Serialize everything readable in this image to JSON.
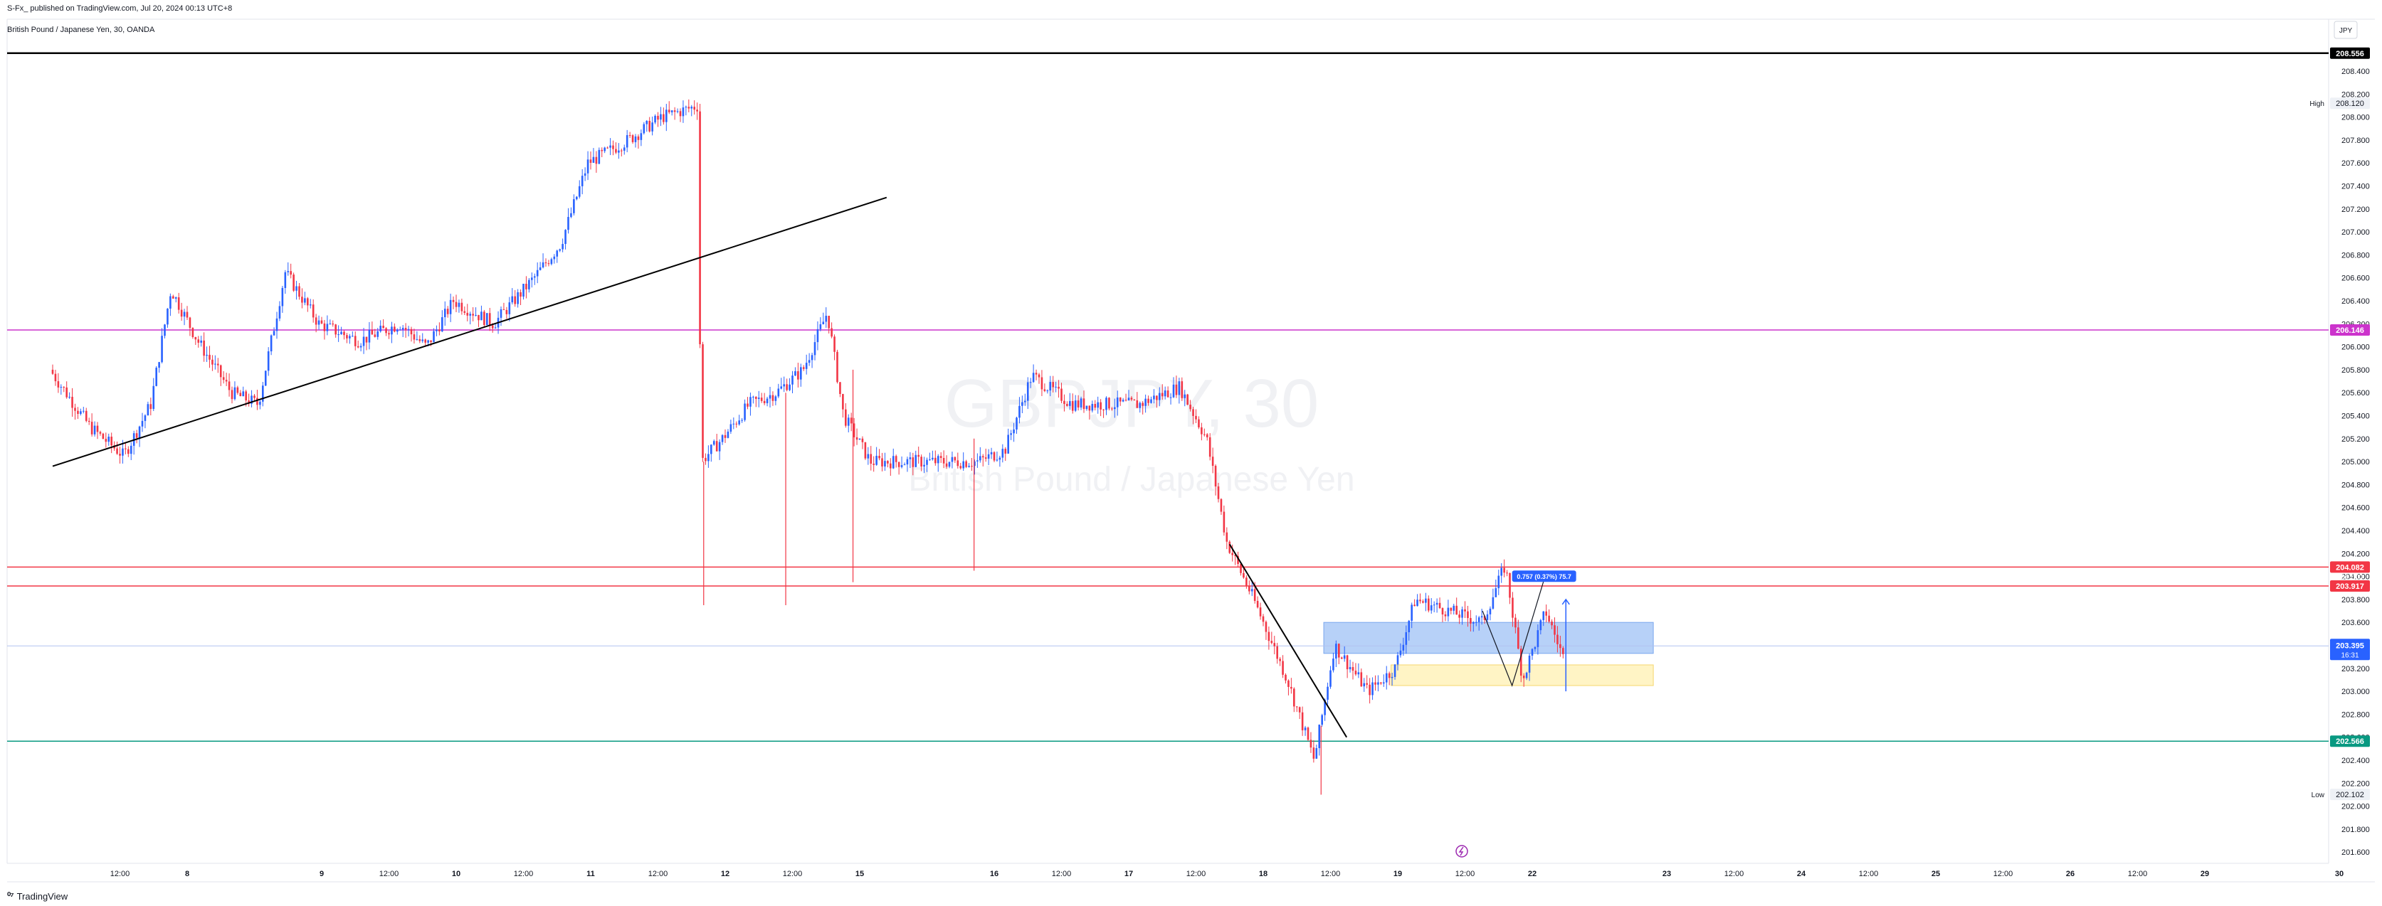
{
  "header": {
    "published_line": "S-Fx_ published on TradingView.com, Jul 20, 2024 00:13 UTC+8",
    "symbol_line": "British Pound / Japanese Yen, 30, OANDA"
  },
  "currency_box": "JPY",
  "watermark": {
    "symbol": "GBPJPY, 30",
    "name": "British Pound / Japanese Yen"
  },
  "footer": {
    "brand": "TradingView"
  },
  "colors": {
    "up": "#2962ff",
    "down": "#f23645",
    "level_black": "#000000",
    "level_magenta": "#cc33cc",
    "level_red": "#f23645",
    "level_teal": "#089981",
    "current_price": "#2962ff",
    "zone_blue": "#9fc1f5",
    "zone_yellow": "#fff3bf"
  },
  "chart_data": {
    "type": "candlestick",
    "y_axis": {
      "range": [
        201.5,
        208.6
      ],
      "ticks": [
        "208.400",
        "208.200",
        "208.000",
        "207.800",
        "207.600",
        "207.400",
        "207.200",
        "207.000",
        "206.800",
        "206.600",
        "206.400",
        "206.200",
        "206.000",
        "205.800",
        "205.600",
        "205.400",
        "205.200",
        "205.000",
        "204.800",
        "204.600",
        "204.400",
        "204.200",
        "204.000",
        "203.800",
        "203.600",
        "203.400",
        "203.200",
        "203.000",
        "202.800",
        "202.600",
        "202.400",
        "202.200",
        "202.000",
        "201.800",
        "201.600"
      ]
    },
    "x_axis": {
      "ticks": [
        {
          "label": "12:00",
          "session": 0.5
        },
        {
          "label": "8",
          "session": 1
        },
        {
          "label": "9",
          "session": 2
        },
        {
          "label": "12:00",
          "session": 2.5
        },
        {
          "label": "10",
          "session": 3
        },
        {
          "label": "12:00",
          "session": 3.5
        },
        {
          "label": "11",
          "session": 4
        },
        {
          "label": "12:00",
          "session": 4.5
        },
        {
          "label": "12",
          "session": 5
        },
        {
          "label": "12:00",
          "session": 5.5
        },
        {
          "label": "15",
          "session": 6
        },
        {
          "label": "16",
          "session": 7
        },
        {
          "label": "12:00",
          "session": 7.5
        },
        {
          "label": "17",
          "session": 8
        },
        {
          "label": "12:00",
          "session": 8.5
        },
        {
          "label": "18",
          "session": 9
        },
        {
          "label": "12:00",
          "session": 9.5
        },
        {
          "label": "19",
          "session": 10
        },
        {
          "label": "12:00",
          "session": 10.5
        },
        {
          "label": "22",
          "session": 11
        },
        {
          "label": "23",
          "session": 12
        },
        {
          "label": "12:00",
          "session": 12.5
        },
        {
          "label": "24",
          "session": 13
        },
        {
          "label": "12:00",
          "session": 13.5
        },
        {
          "label": "25",
          "session": 14
        },
        {
          "label": "12:00",
          "session": 14.5
        },
        {
          "label": "26",
          "session": 15
        },
        {
          "label": "12:00",
          "session": 15.5
        },
        {
          "label": "29",
          "session": 16
        },
        {
          "label": "30",
          "session": 17
        }
      ]
    },
    "price_path_keypoints": [
      {
        "session": 0.0,
        "price": 205.8
      },
      {
        "session": 0.3,
        "price": 205.3
      },
      {
        "session": 0.55,
        "price": 205.05
      },
      {
        "session": 0.75,
        "price": 205.5
      },
      {
        "session": 0.9,
        "price": 206.5
      },
      {
        "session": 1.1,
        "price": 206.05
      },
      {
        "session": 1.35,
        "price": 205.6
      },
      {
        "session": 1.55,
        "price": 205.5
      },
      {
        "session": 1.75,
        "price": 206.65
      },
      {
        "session": 2.0,
        "price": 206.2
      },
      {
        "session": 2.3,
        "price": 206.05
      },
      {
        "session": 2.6,
        "price": 206.2
      },
      {
        "session": 2.8,
        "price": 206.0
      },
      {
        "session": 3.0,
        "price": 206.4
      },
      {
        "session": 3.3,
        "price": 206.2
      },
      {
        "session": 3.6,
        "price": 206.6
      },
      {
        "session": 3.8,
        "price": 206.9
      },
      {
        "session": 4.0,
        "price": 207.6
      },
      {
        "session": 4.3,
        "price": 207.8
      },
      {
        "session": 4.55,
        "price": 208.0
      },
      {
        "session": 4.82,
        "price": 208.1
      },
      {
        "session": 4.84,
        "price": 205.0
      },
      {
        "session": 5.0,
        "price": 205.2
      },
      {
        "session": 5.2,
        "price": 205.5
      },
      {
        "session": 5.4,
        "price": 205.6
      },
      {
        "session": 5.6,
        "price": 205.8
      },
      {
        "session": 5.78,
        "price": 206.3
      },
      {
        "session": 5.9,
        "price": 205.4
      },
      {
        "session": 6.1,
        "price": 205.0
      },
      {
        "session": 6.6,
        "price": 205.0
      },
      {
        "session": 6.9,
        "price": 205.0
      },
      {
        "session": 7.1,
        "price": 205.1
      },
      {
        "session": 7.3,
        "price": 205.75
      },
      {
        "session": 7.6,
        "price": 205.5
      },
      {
        "session": 7.9,
        "price": 205.5
      },
      {
        "session": 8.1,
        "price": 205.5
      },
      {
        "session": 8.4,
        "price": 205.65
      },
      {
        "session": 8.6,
        "price": 205.2
      },
      {
        "session": 8.75,
        "price": 204.3
      },
      {
        "session": 8.95,
        "price": 203.8
      },
      {
        "session": 9.2,
        "price": 203.1
      },
      {
        "session": 9.4,
        "price": 202.4
      },
      {
        "session": 9.55,
        "price": 203.4
      },
      {
        "session": 9.8,
        "price": 203.0
      },
      {
        "session": 10.0,
        "price": 203.2
      },
      {
        "session": 10.15,
        "price": 203.8
      },
      {
        "session": 10.4,
        "price": 203.7
      },
      {
        "session": 10.65,
        "price": 203.6
      },
      {
        "session": 10.82,
        "price": 204.1
      },
      {
        "session": 10.95,
        "price": 203.1
      },
      {
        "session": 11.12,
        "price": 203.7
      },
      {
        "session": 11.25,
        "price": 203.3
      }
    ],
    "horizontal_levels": [
      {
        "price": 208.556,
        "label": "208.556",
        "color": "#000000"
      },
      {
        "price": 206.146,
        "label": "206.146",
        "color": "#cc33cc"
      },
      {
        "price": 204.082,
        "label": "204.082",
        "color": "#f23645"
      },
      {
        "price": 203.917,
        "label": "203.917",
        "color": "#f23645"
      },
      {
        "price": 202.566,
        "label": "202.566",
        "color": "#089981"
      }
    ],
    "current_price": {
      "price": 203.395,
      "label": "203.395",
      "countdown": "16:31"
    },
    "high_marker": {
      "label": "High",
      "price": 208.12,
      "value": "208.120"
    },
    "low_marker": {
      "label": "Low",
      "price": 202.102,
      "value": "202.102"
    },
    "extra_axis_label": "204.000",
    "trendlines": [
      {
        "from": {
          "session": 0.0,
          "price": 204.96
        },
        "to": {
          "session": 6.2,
          "price": 207.3
        }
      },
      {
        "from": {
          "session": 8.75,
          "price": 204.28
        },
        "to": {
          "session": 9.62,
          "price": 202.6
        }
      }
    ],
    "zones": [
      {
        "name": "blue-zone",
        "from_session": 9.45,
        "to_session": 11.9,
        "top": 203.6,
        "bottom": 203.33
      },
      {
        "name": "yellow-zone",
        "from_session": 9.95,
        "to_session": 11.9,
        "top": 203.23,
        "bottom": 203.05
      }
    ],
    "projection": {
      "label": "0.757 (0.37%) 75.7",
      "path": [
        {
          "session": 10.63,
          "price": 203.7
        },
        {
          "session": 10.85,
          "price": 203.05
        },
        {
          "session": 11.1,
          "price": 204.02
        }
      ],
      "arrow_from": {
        "session": 11.25,
        "price": 203.0
      },
      "arrow_to": {
        "session": 11.25,
        "price": 203.8
      }
    }
  }
}
